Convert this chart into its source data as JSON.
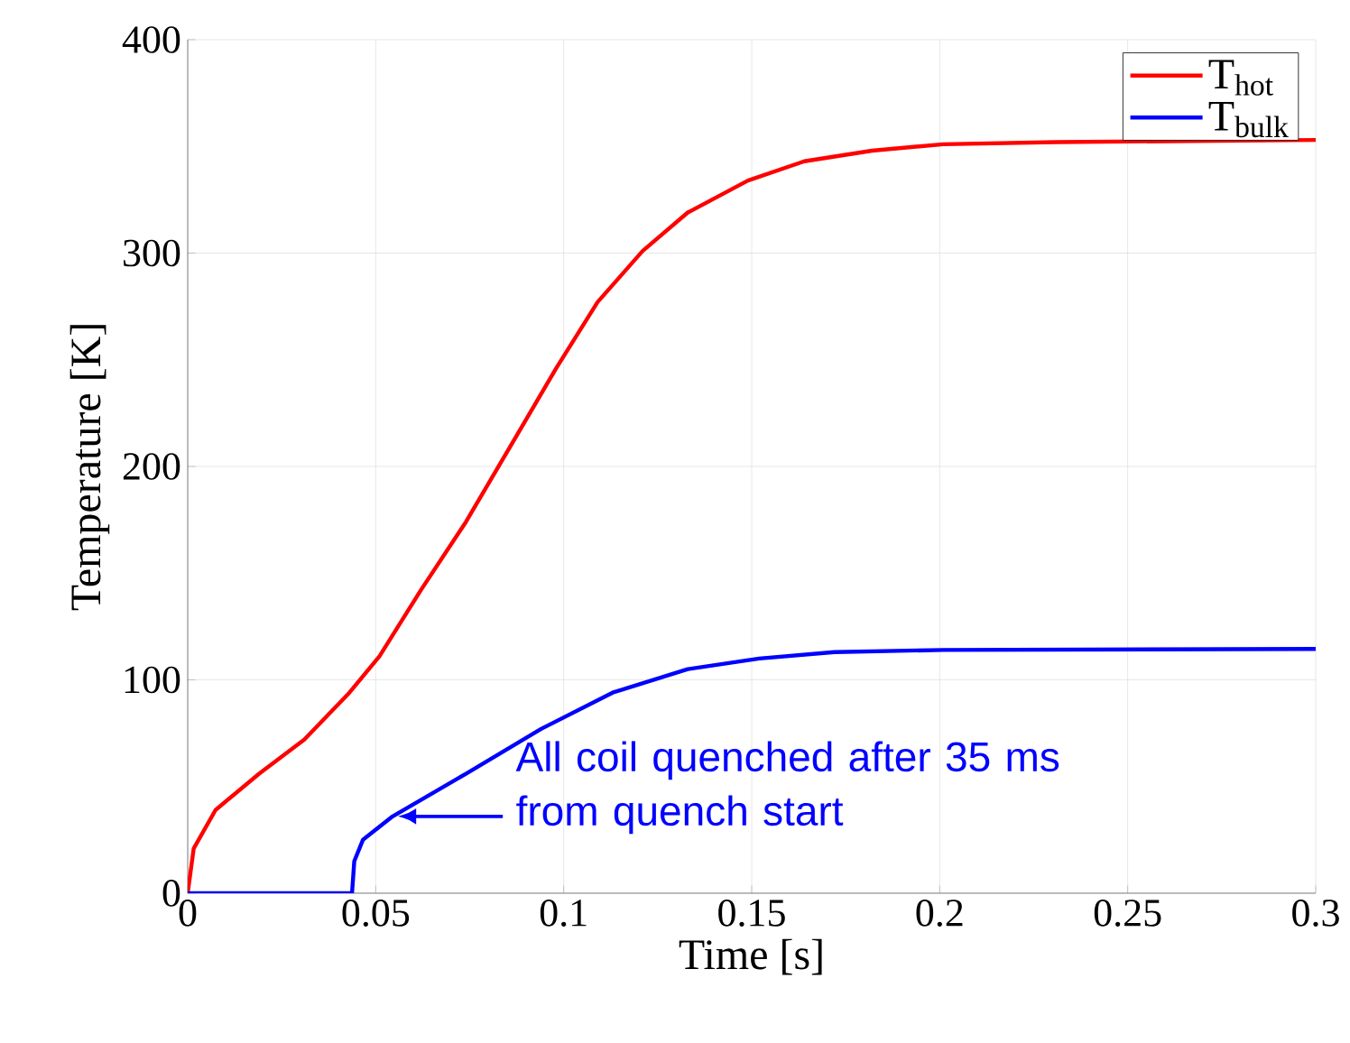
{
  "chart_data": {
    "type": "line",
    "xlabel": "Time [s]",
    "ylabel": "Temperature [K]",
    "xlim": [
      0,
      0.3
    ],
    "ylim": [
      0,
      400
    ],
    "xticks": [
      0,
      0.05,
      0.1,
      0.15,
      0.2,
      0.25,
      0.3
    ],
    "yticks": [
      0,
      100,
      200,
      300,
      400
    ],
    "grid": true,
    "legend": "top right",
    "line_style": "solid",
    "marker": "none",
    "annotations": [
      {
        "text": "All coil quenched after 35 ms from quench start",
        "x": 0.055,
        "y": 36
      }
    ],
    "series": [
      {
        "name": "T$_{hot}$",
        "color": "#ff0000",
        "x": [
          0,
          0.0016,
          0.0074,
          0.019,
          0.031,
          0.043,
          0.051,
          0.062,
          0.074,
          0.086,
          0.098,
          0.109,
          0.121,
          0.133,
          0.149,
          0.164,
          0.182,
          0.201,
          0.231,
          0.3
        ],
        "values": [
          0,
          21,
          39,
          56,
          72,
          94,
          111,
          142,
          174,
          210,
          246,
          277,
          301,
          319,
          334,
          343,
          348,
          351,
          352,
          353
        ]
      },
      {
        "name": "T$_{bulk}$",
        "color": "#0000ff",
        "x": [
          0,
          0.0437,
          0.0443,
          0.0466,
          0.0545,
          0.074,
          0.094,
          0.113,
          0.133,
          0.152,
          0.172,
          0.201,
          0.3
        ],
        "values": [
          0,
          0,
          15,
          25,
          36,
          56,
          77,
          94,
          105,
          110,
          113,
          114,
          114.5
        ]
      }
    ]
  }
}
